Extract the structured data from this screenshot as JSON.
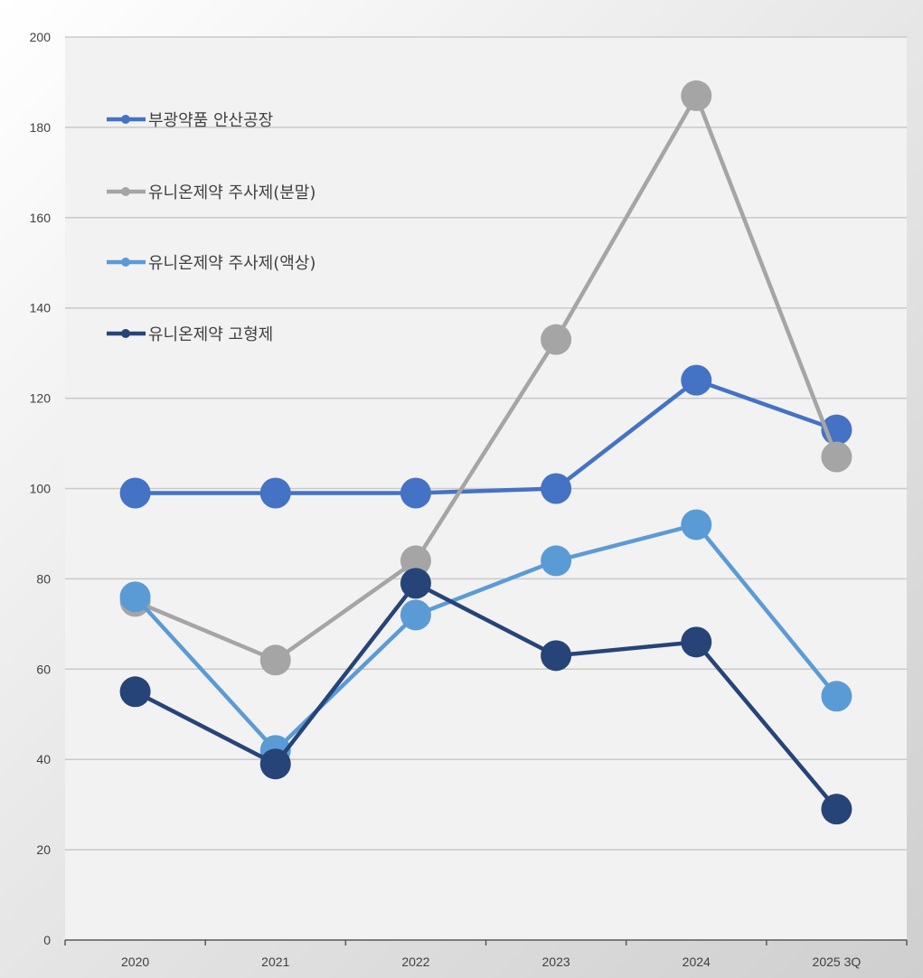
{
  "chart_data": {
    "type": "line",
    "title": "",
    "xlabel": "",
    "ylabel": "",
    "categories": [
      "2020",
      "2021",
      "2022",
      "2023",
      "2024",
      "2025 3Q"
    ],
    "ylim": [
      0,
      200
    ],
    "yticks": [
      0,
      20,
      40,
      60,
      80,
      100,
      120,
      140,
      160,
      180,
      200
    ],
    "grid": true,
    "legend_position": "top-left",
    "series": [
      {
        "name": "부광약품 안산공장",
        "color": "#4472C4",
        "values": [
          99,
          99,
          99,
          100,
          124,
          113
        ]
      },
      {
        "name": "유니온제약 주사제(분말)",
        "color": "#A5A5A5",
        "values": [
          75,
          62,
          84,
          133,
          187,
          107
        ]
      },
      {
        "name": "유니온제약 주사제(액상)",
        "color": "#5B9BD5",
        "values": [
          76,
          42,
          72,
          84,
          92,
          54
        ]
      },
      {
        "name": "유니온제약 고형제",
        "color": "#264478",
        "values": [
          55,
          39,
          79,
          63,
          66,
          29
        ]
      }
    ]
  }
}
